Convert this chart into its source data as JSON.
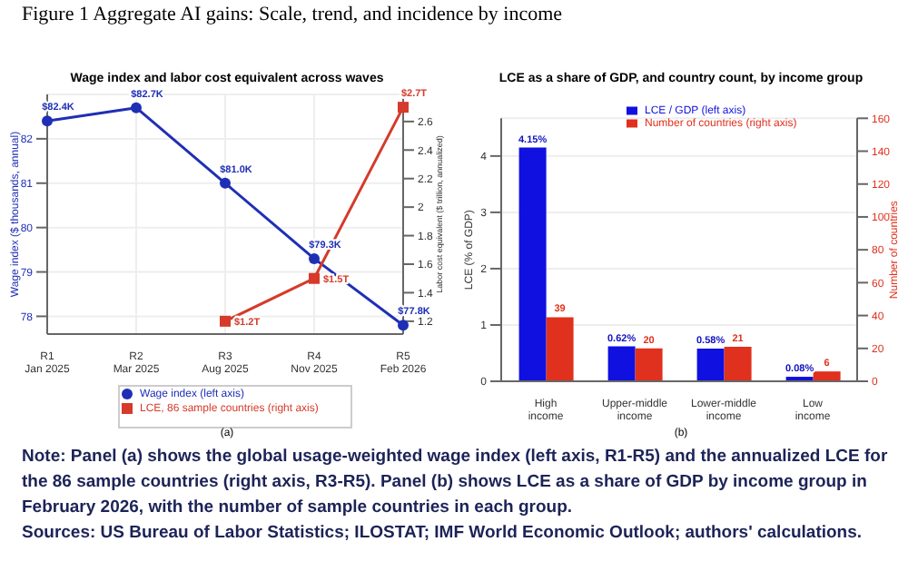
{
  "chart_data": [
    {
      "type": "line",
      "title": "Wage index and labor cost equivalent across waves",
      "categories": [
        "R1\nJan 2025",
        "R2\nMar 2025",
        "R3\nAug 2025",
        "R4\nNov 2025",
        "R5\nFeb 2026"
      ],
      "series": [
        {
          "name": "Wage index (left axis)",
          "color": "#1f2fb5",
          "marker": "circle",
          "values": [
            82.4,
            82.7,
            81.0,
            79.3,
            77.8
          ],
          "value_labels": [
            "$82.4K",
            "$82.7K",
            "$81.0K",
            "$79.3K",
            "$77.8K"
          ]
        },
        {
          "name": "LCE, 86 sample countries (right axis)",
          "color": "#d63a2a",
          "marker": "square",
          "axis": "y2",
          "values": [
            null,
            null,
            1.2,
            1.5,
            2.7
          ],
          "value_labels": [
            null,
            null,
            "$1.2T",
            "$1.5T",
            "$2.7T"
          ]
        }
      ],
      "ylabel": "Wage index ($ thousands, annual)",
      "y2label": "Labor cost equivalent ($ trillion, annualized)",
      "ylim": [
        77.6,
        83.0
      ],
      "yticks": [
        78,
        79,
        80,
        81,
        82
      ],
      "y2lim": [
        1.11,
        2.79
      ],
      "y2ticks": [
        1.2,
        1.4,
        1.6,
        1.8,
        2.0,
        2.2,
        2.4,
        2.6
      ],
      "grid": true,
      "legend": "bottom",
      "annotations": [
        "Figure 1 Aggregate AI gains: Scale, trend, and incidence by income",
        "(a)"
      ]
    },
    {
      "type": "bar",
      "title": "LCE as a share of GDP, and country count, by income group",
      "categories": [
        "High\nincome",
        "Upper-middle\nincome",
        "Lower-middle\nincome",
        "Low\nincome"
      ],
      "series": [
        {
          "name": "LCE / GDP (left axis)",
          "color": "#1010e0",
          "values": [
            4.15,
            0.62,
            0.58,
            0.08
          ],
          "value_labels": [
            "4.15%",
            "0.62%",
            "0.58%",
            "0.08%"
          ]
        },
        {
          "name": "Number of countries (right axis)",
          "color": "#e0301e",
          "axis": "y2",
          "values": [
            39,
            20,
            21,
            6
          ],
          "value_labels": [
            "39",
            "20",
            "21",
            "6"
          ]
        }
      ],
      "ylabel": "LCE (% of GDP)",
      "y2label": "Number of countries",
      "ylim": [
        0,
        4.67
      ],
      "yticks": [
        0,
        1,
        2,
        3,
        4
      ],
      "y2lim": [
        0,
        160
      ],
      "y2ticks": [
        0,
        20,
        40,
        60,
        80,
        100,
        120,
        140,
        160
      ],
      "grid": "y",
      "legend": "top",
      "annotations": [
        "(b)",
        "Note: Panel (a) shows the global usage-weighted wage index (left axis, R1-R5) and the annualized LCE for the 86 sample countries (right axis, R3-R5). Panel (b) shows LCE as a share of GDP by income group in February 2026, with the number of sample countries in each group.",
        "Sources: US Bureau of Labor Statistics; ILOSTAT; IMF World Economic Outlook; authors' calculations."
      ]
    }
  ]
}
